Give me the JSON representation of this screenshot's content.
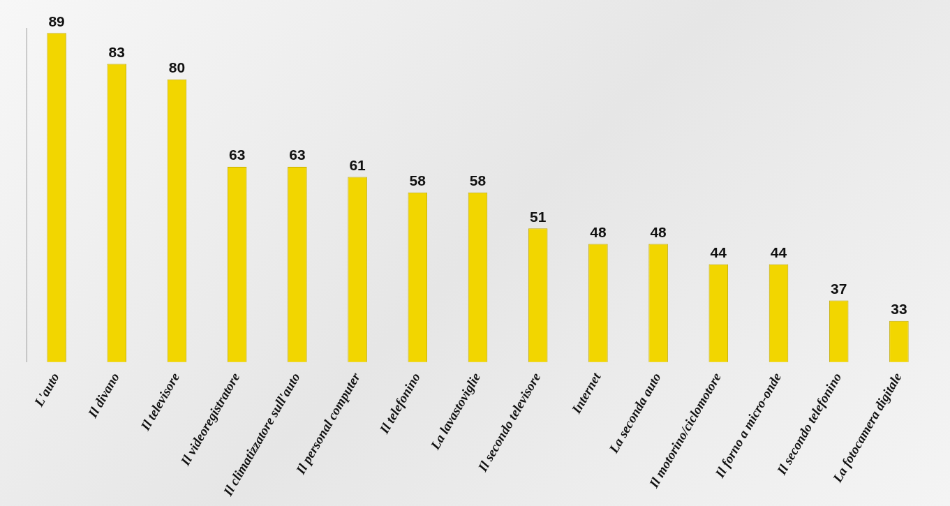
{
  "chart_data": {
    "type": "bar",
    "categories": [
      "L'auto",
      "Il divano",
      "Il televisore",
      "Il videoregistratore",
      "Il climatizzatore sull'auto",
      "Il personal computer",
      "Il telefonino",
      "La lavastoviglie",
      "Il secondo televisore",
      "Internet",
      "La seconda auto",
      "Il motorino/ciclomotore",
      "Il forno a micro-onde",
      "Il secondo telefonino",
      "La fotocamera digitale"
    ],
    "values": [
      89,
      83,
      80,
      63,
      63,
      61,
      58,
      58,
      51,
      48,
      48,
      44,
      44,
      37,
      33
    ],
    "color": "#f2d600",
    "ylim": [
      25,
      90
    ],
    "grid": false,
    "data_labels": true,
    "tick_labels": "x"
  }
}
